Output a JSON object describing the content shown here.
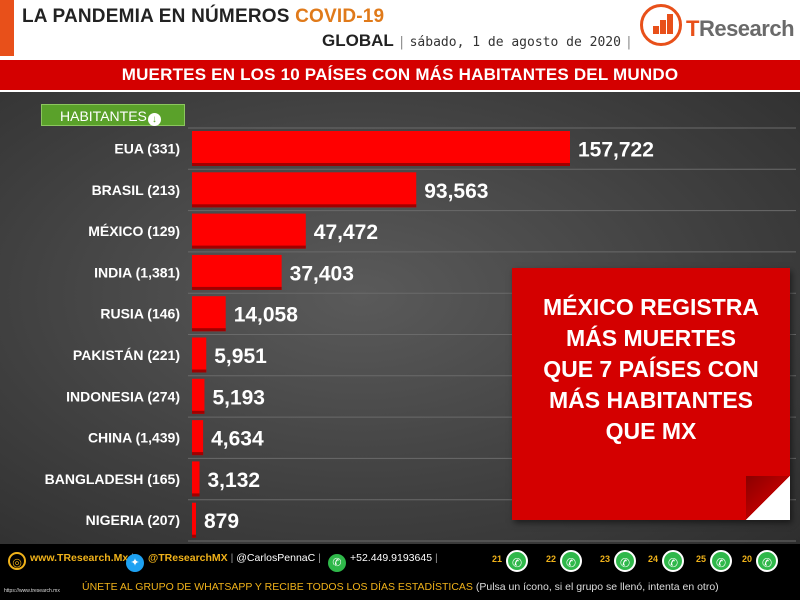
{
  "header": {
    "title_main": "LA PANDEMIA EN NÚMEROS",
    "title_accent": "COVID-19",
    "scope": "GLOBAL",
    "date": "sábado, 1 de agosto de 2020",
    "logo_text_accent": "T",
    "logo_text_rest": "Research",
    "brand_color": "#e8501a"
  },
  "banner": {
    "text": "MUERTES EN LOS 10 PAÍSES CON MÁS HABITANTES DEL MUNDO"
  },
  "legend_tag": {
    "label": "HABITANTES",
    "icon": "arrow-down-icon"
  },
  "chart_data": {
    "type": "bar",
    "orientation": "horizontal",
    "bar_color": "#ff0000",
    "categories": [
      "EUA (331)",
      "BRASIL (213)",
      "MÉXICO (129)",
      "INDIA (1,381)",
      "RUSIA (146)",
      "PAKISTÁN (221)",
      "INDONESIA (274)",
      "CHINA (1,439)",
      "BANGLADESH (165)",
      "NIGERIA (207)"
    ],
    "values": [
      157722,
      93563,
      47472,
      37403,
      14058,
      5951,
      5193,
      4634,
      3132,
      879
    ],
    "value_labels": [
      "157,722",
      "93,563",
      "47,472",
      "37,403",
      "14,058",
      "5,951",
      "5,193",
      "4,634",
      "3,132",
      "879"
    ],
    "xlim": [
      0,
      160000
    ],
    "grid": true
  },
  "callout": {
    "lines": [
      "MÉXICO REGISTRA",
      "MÁS MUERTES",
      "QUE 7 PAÍSES CON",
      "MÁS HABITANTES",
      "QUE MX"
    ]
  },
  "footer": {
    "website_bold": "www.TResearch.Mx",
    "twitter_bold": "@TResearchMX",
    "twitter_extra": "@CarlosPennaC",
    "phone": "+52.449.9193645",
    "whatsapp_groups": [
      "21",
      "22",
      "23",
      "24",
      "25",
      "20"
    ],
    "cta": "ÚNETE AL GRUPO DE WHATSAPP Y RECIBE TODOS LOS DÍAS ESTADÍSTICAS",
    "cta_note": "(Pulsa un ícono, si el grupo se llenó, intenta en otro)",
    "tiny_url": "https://www.tresearch.mx"
  }
}
